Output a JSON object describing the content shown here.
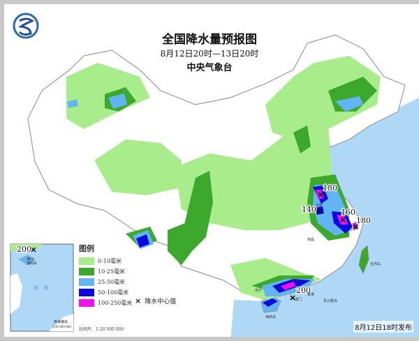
{
  "title": "全国降水量预报图",
  "subtitle": "8月12日20时—13日20时",
  "issuer": "中央气象台",
  "legend": {
    "title": "图例",
    "items": [
      {
        "label": "0-10毫米",
        "color": "#a8ec8c"
      },
      {
        "label": "10-25毫米",
        "color": "#3ca82c"
      },
      {
        "label": "25-50毫米",
        "color": "#62b4f2"
      },
      {
        "label": "50-100毫米",
        "color": "#0a0ae0"
      },
      {
        "label": "100-250毫米",
        "color": "#f010f0"
      }
    ],
    "center_marker": {
      "symbol": "×",
      "label": "降水中心值"
    }
  },
  "scale": "比例尺　1:20 000 000",
  "inset": {
    "label": "南海诸岛",
    "scale": "1:40 000 000",
    "sea_label": "南　海",
    "max_value": "200",
    "places": [
      "海口",
      "海南岛"
    ]
  },
  "max_values": [
    "180",
    "140",
    "160",
    "180",
    "200"
  ],
  "places": [
    "广州",
    "香港",
    "澳门",
    "海南岛",
    "东沙群岛",
    "南宁",
    "合肥",
    "南昌",
    "台湾岛"
  ],
  "issued": "8月12日18时发布",
  "colors": {
    "sea": "#aed8f6",
    "land": "#ffffff",
    "border": "#9a9a9a"
  }
}
